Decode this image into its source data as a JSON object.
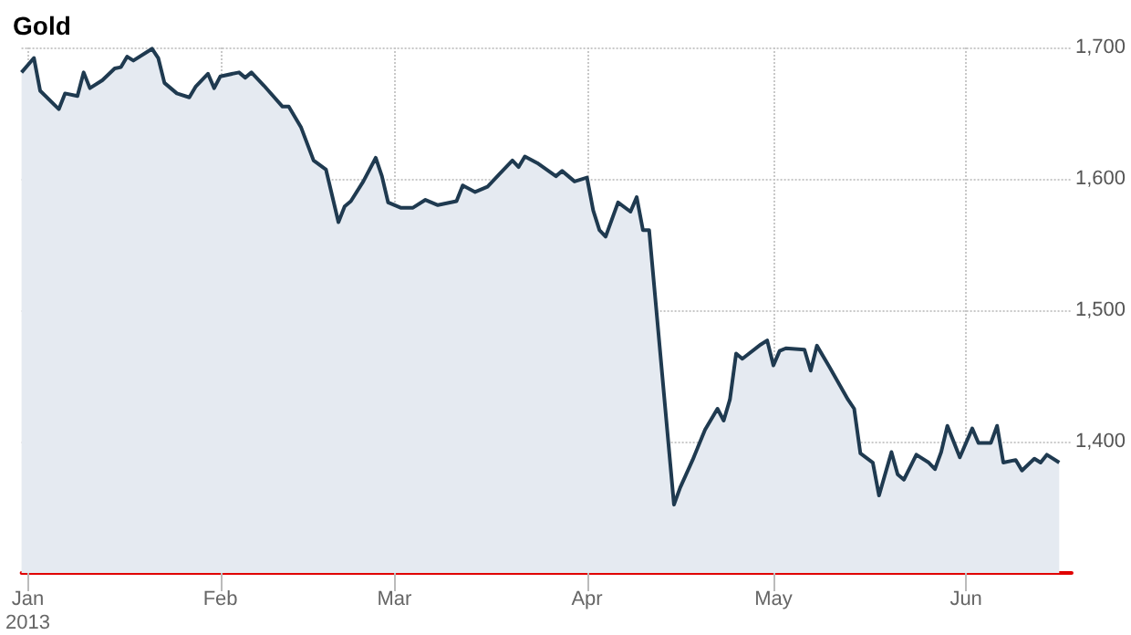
{
  "chart_data": {
    "type": "area",
    "title": "Gold",
    "x": [
      "2012-12-31",
      "2013-01-02",
      "2013-01-03",
      "2013-01-06",
      "2013-01-07",
      "2013-01-09",
      "2013-01-10",
      "2013-01-11",
      "2013-01-13",
      "2013-01-15",
      "2013-01-16",
      "2013-01-17",
      "2013-01-18",
      "2013-01-21",
      "2013-01-22",
      "2013-01-23",
      "2013-01-25",
      "2013-01-27",
      "2013-01-28",
      "2013-01-30",
      "2013-01-31",
      "2013-02-01",
      "2013-02-04",
      "2013-02-05",
      "2013-02-06",
      "2013-02-08",
      "2013-02-11",
      "2013-02-12",
      "2013-02-14",
      "2013-02-16",
      "2013-02-18",
      "2013-02-20",
      "2013-02-21",
      "2013-02-22",
      "2013-02-24",
      "2013-02-26",
      "2013-02-27",
      "2013-02-28",
      "2013-03-02",
      "2013-03-04",
      "2013-03-06",
      "2013-03-08",
      "2013-03-11",
      "2013-03-12",
      "2013-03-14",
      "2013-03-16",
      "2013-03-18",
      "2013-03-20",
      "2013-03-21",
      "2013-03-22",
      "2013-03-24",
      "2013-03-27",
      "2013-03-28",
      "2013-03-30",
      "2013-04-01",
      "2013-04-02",
      "2013-04-03",
      "2013-04-04",
      "2013-04-06",
      "2013-04-08",
      "2013-04-09",
      "2013-04-10",
      "2013-04-11",
      "2013-04-15",
      "2013-04-16",
      "2013-04-18",
      "2013-04-20",
      "2013-04-22",
      "2013-04-23",
      "2013-04-24",
      "2013-04-25",
      "2013-04-26",
      "2013-04-29",
      "2013-04-30",
      "2013-05-01",
      "2013-05-02",
      "2013-05-03",
      "2013-05-06",
      "2013-05-07",
      "2013-05-08",
      "2013-05-10",
      "2013-05-13",
      "2013-05-14",
      "2013-05-15",
      "2013-05-17",
      "2013-05-18",
      "2013-05-20",
      "2013-05-21",
      "2013-05-22",
      "2013-05-24",
      "2013-05-26",
      "2013-05-27",
      "2013-05-28",
      "2013-05-29",
      "2013-05-31",
      "2013-06-02",
      "2013-06-03",
      "2013-06-05",
      "2013-06-06",
      "2013-06-07",
      "2013-06-09",
      "2013-06-10",
      "2013-06-12",
      "2013-06-13",
      "2013-06-14",
      "2013-06-16"
    ],
    "series": [
      {
        "color": "#1f3a50",
        "values": [
          1681,
          1692,
          1667,
          1653,
          1665,
          1663,
          1681,
          1669,
          1675,
          1684,
          1685,
          1693,
          1690,
          1699,
          1692,
          1673,
          1665,
          1662,
          1670,
          1680,
          1669,
          1678,
          1681,
          1677,
          1681,
          1671,
          1655,
          1655,
          1639,
          1614,
          1607,
          1567,
          1579,
          1583,
          1598,
          1616,
          1602,
          1582,
          1578,
          1578,
          1584,
          1580,
          1583,
          1595,
          1590,
          1594,
          1604,
          1614,
          1609,
          1617,
          1612,
          1602,
          1606,
          1598,
          1601,
          1576,
          1561,
          1556,
          1582,
          1575,
          1586,
          1561,
          1561,
          1352,
          1365,
          1386,
          1409,
          1425,
          1416,
          1432,
          1467,
          1463,
          1474,
          1477,
          1458,
          1469,
          1471,
          1470,
          1454,
          1473,
          1457,
          1432,
          1425,
          1391,
          1384,
          1359,
          1392,
          1375,
          1371,
          1390,
          1384,
          1379,
          1392,
          1412,
          1388,
          1410,
          1399,
          1399,
          1412,
          1384,
          1386,
          1378,
          1387,
          1384,
          1390,
          1384
        ]
      }
    ],
    "xlim": [
      "2012-12-31",
      "2013-06-18"
    ],
    "xticks": [
      {
        "value": "2013-01-01",
        "label": "Jan\n2013"
      },
      {
        "value": "2013-02-01",
        "label": "Feb"
      },
      {
        "value": "2013-03-01",
        "label": "Mar"
      },
      {
        "value": "2013-04-01",
        "label": "Apr"
      },
      {
        "value": "2013-05-01",
        "label": "May"
      },
      {
        "value": "2013-06-01",
        "label": "Jun"
      }
    ],
    "ylim": [
      1300,
      1700
    ],
    "yticks": [
      {
        "value": 1300,
        "label": null
      },
      {
        "value": 1400,
        "label": "1,400"
      },
      {
        "value": 1500,
        "label": "1,500"
      },
      {
        "value": 1600,
        "label": "1,600"
      },
      {
        "value": 1700,
        "label": "1,700"
      }
    ],
    "grid": true
  }
}
